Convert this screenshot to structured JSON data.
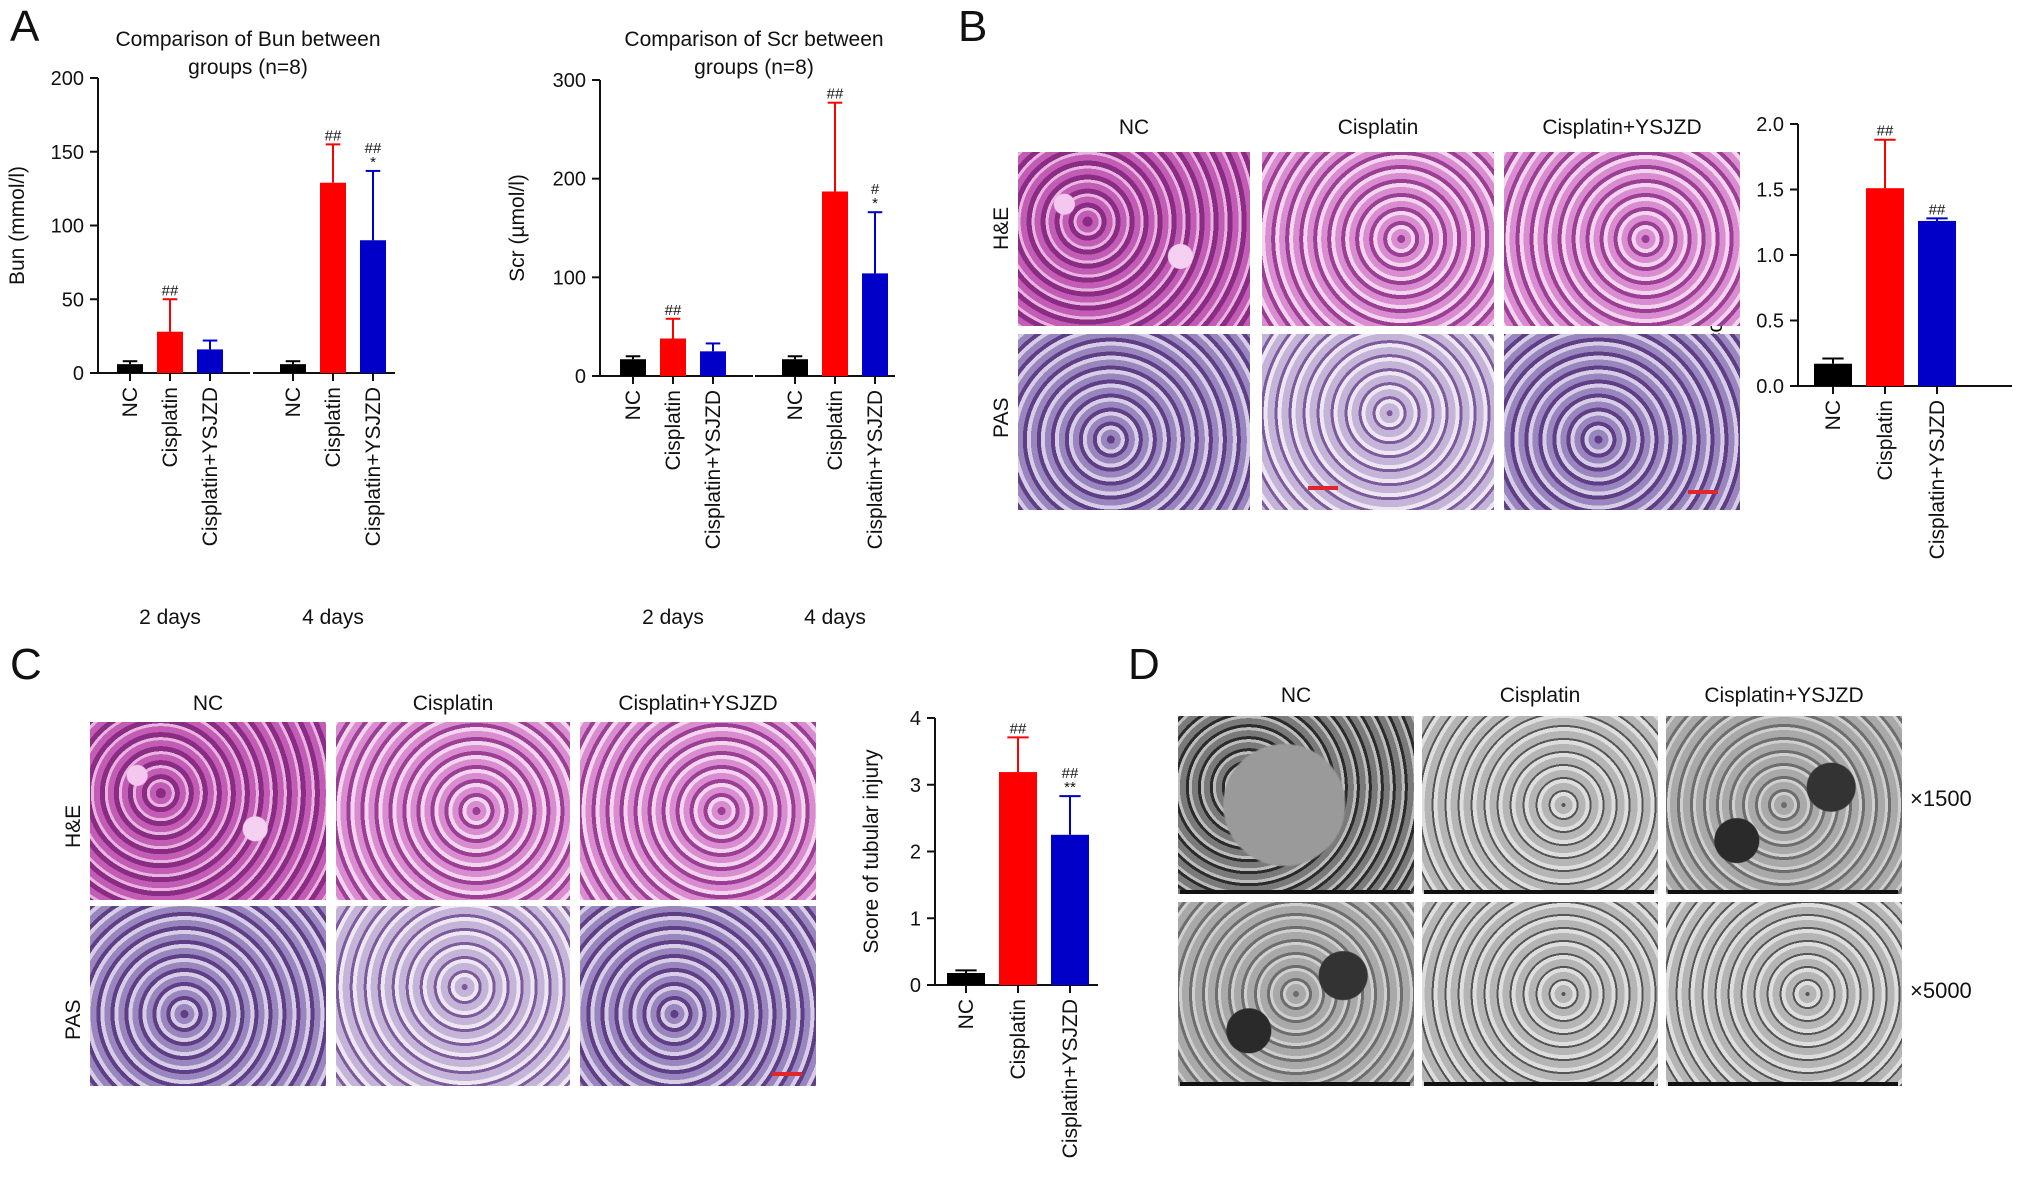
{
  "panels": {
    "a": "A",
    "b": "B",
    "c": "C",
    "d": "D"
  },
  "image_panels": {
    "b": {
      "columns": [
        "NC",
        "Cisplatin",
        "Cisplatin+YSJZD"
      ],
      "rows": [
        "H&E",
        "PAS"
      ]
    },
    "c": {
      "columns": [
        "NC",
        "Cisplatin",
        "Cisplatin+YSJZD"
      ],
      "rows": [
        "H&E",
        "PAS"
      ]
    },
    "d": {
      "columns": [
        "NC",
        "Cisplatin",
        "Cisplatin+YSJZD"
      ],
      "magnifications": [
        "×1500",
        "×5000"
      ]
    }
  },
  "colors": {
    "nc": "#000000",
    "cisplatin": "#ff0000",
    "ysjzd": "#0000c8"
  },
  "chart_data": [
    {
      "id": "bun",
      "type": "bar",
      "title": "Comparison of Bun between groups (n=8)",
      "title_lines": [
        "Comparison of Bun between",
        "groups (n=8)"
      ],
      "ylabel": "Bun (mmol/l)",
      "ylim": [
        0,
        200
      ],
      "yticks": [
        0,
        50,
        100,
        150,
        200
      ],
      "groups": [
        "2 days",
        "4 days"
      ],
      "categories": [
        "NC",
        "Cisplatin",
        "Cisplatin+YSJZD"
      ],
      "series": [
        {
          "group": "2 days",
          "values": [
            6,
            28,
            16
          ],
          "errors": [
            2,
            22,
            6
          ],
          "annotations": [
            "",
            "##",
            ""
          ]
        },
        {
          "group": "4 days",
          "values": [
            6,
            129,
            90
          ],
          "errors": [
            2,
            26,
            47
          ],
          "annotations": [
            "",
            "##",
            "##\n*"
          ]
        }
      ]
    },
    {
      "id": "scr",
      "type": "bar",
      "title": "Comparison of Scr between groups (n=8)",
      "title_lines": [
        "Comparison of Scr between",
        "groups (n=8)"
      ],
      "ylabel": "Scr (µmol/l)",
      "ylim": [
        0,
        300
      ],
      "yticks": [
        0,
        100,
        200,
        300
      ],
      "groups": [
        "2 days",
        "4 days"
      ],
      "categories": [
        "NC",
        "Cisplatin",
        "Cisplatin+YSJZD"
      ],
      "series": [
        {
          "group": "2 days",
          "values": [
            17,
            38,
            25
          ],
          "errors": [
            3,
            20,
            8
          ],
          "annotations": [
            "",
            "##",
            ""
          ]
        },
        {
          "group": "4 days",
          "values": [
            17,
            187,
            104
          ],
          "errors": [
            3,
            90,
            62
          ],
          "annotations": [
            "",
            "##",
            "#\n*"
          ]
        }
      ]
    },
    {
      "id": "b_score",
      "type": "bar",
      "ylabel": "Score of tubular injury",
      "ylim": [
        0,
        2.0
      ],
      "yticks": [
        "0.0",
        "0.5",
        "1.0",
        "1.5",
        "2.0"
      ],
      "categories": [
        "NC",
        "Cisplatin",
        "Cisplatin+YSJZD"
      ],
      "values": [
        0.17,
        1.51,
        1.26
      ],
      "errors": [
        0.04,
        0.37,
        0.02
      ],
      "annotations": [
        "",
        "##",
        "##"
      ]
    },
    {
      "id": "c_score",
      "type": "bar",
      "ylabel": "Score of tubular injury",
      "ylim": [
        0,
        4
      ],
      "yticks": [
        0,
        1,
        2,
        3,
        4
      ],
      "categories": [
        "NC",
        "Cisplatin",
        "Cisplatin+YSJZD"
      ],
      "values": [
        0.18,
        3.19,
        2.25
      ],
      "errors": [
        0.04,
        0.52,
        0.58
      ],
      "annotations": [
        "",
        "##",
        "##\n**"
      ]
    }
  ]
}
